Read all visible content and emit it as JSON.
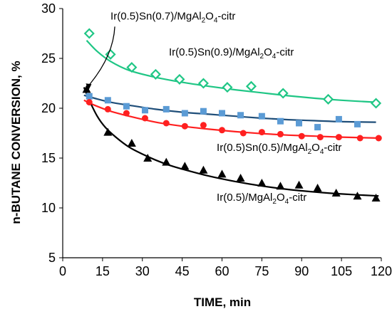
{
  "chart_data": {
    "type": "scatter",
    "title": "",
    "xlabel": "TIME, min",
    "ylabel": "n-BUTANE CONVERSION, %",
    "xlim": [
      0,
      120
    ],
    "ylim": [
      5,
      30
    ],
    "xticks": [
      0,
      15,
      30,
      45,
      60,
      75,
      90,
      105,
      120
    ],
    "yticks": [
      5,
      10,
      15,
      20,
      25,
      30
    ],
    "x_tick_labels": [
      "0",
      "15",
      "30",
      "45",
      "60",
      "75",
      "90",
      "105",
      "120"
    ],
    "y_tick_labels": [
      "5",
      "10",
      "15",
      "20",
      "25",
      "30"
    ],
    "grid": false,
    "legend": "none",
    "series": [
      {
        "label_parts": [
          "Ir(0.5)Sn(0.7)/MgAl",
          "2",
          "O",
          "4",
          "-citr"
        ],
        "color": "#1f4e79",
        "marker_color": "#5b9bd5",
        "marker": "square",
        "x": [
          10,
          17,
          24,
          31,
          39,
          46,
          53,
          60,
          67,
          75,
          82,
          89,
          96,
          104,
          111
        ],
        "y": [
          21.2,
          20.8,
          20.2,
          19.8,
          19.9,
          19.5,
          19.7,
          19.5,
          19.3,
          19.2,
          18.7,
          18.5,
          18.1,
          18.9,
          18.4
        ],
        "fit_x": [
          8,
          12,
          18,
          25,
          35,
          45,
          55,
          65,
          75,
          85,
          95,
          105,
          118
        ],
        "fit_y": [
          21.3,
          21.0,
          20.6,
          20.3,
          19.9,
          19.6,
          19.4,
          19.2,
          19.0,
          18.85,
          18.75,
          18.65,
          18.6
        ]
      },
      {
        "label_parts": [
          "Ir(0.5)Sn(0.9)/MgAl",
          "2",
          "O",
          "4",
          "-citr"
        ],
        "color": "#1fc685",
        "marker_color": "#1fc685",
        "marker": "diamond",
        "x": [
          10,
          18,
          26,
          35,
          44,
          53,
          62,
          71,
          83,
          100,
          118
        ],
        "y": [
          27.5,
          25.4,
          24.1,
          23.4,
          22.9,
          22.5,
          22.1,
          22.2,
          21.5,
          20.9,
          20.5
        ],
        "fit_x": [
          9,
          13,
          18,
          25,
          35,
          45,
          55,
          65,
          75,
          85,
          95,
          105,
          118
        ],
        "fit_y": [
          26.8,
          25.7,
          24.7,
          23.8,
          23.1,
          22.6,
          22.2,
          21.85,
          21.55,
          21.25,
          21.0,
          20.8,
          20.6
        ]
      },
      {
        "label_parts": [
          "Ir(0.5)Sn(0.5)/MgAl",
          "2",
          "O",
          "4",
          "-citr"
        ],
        "color": "#ff2020",
        "marker_color": "#ff2020",
        "marker": "circle",
        "x": [
          10,
          17,
          24,
          31,
          39,
          46,
          53,
          60,
          68,
          75,
          82,
          90,
          97,
          104,
          112,
          119
        ],
        "y": [
          20.6,
          19.9,
          19.5,
          19.0,
          18.5,
          18.2,
          18.3,
          17.8,
          17.5,
          17.6,
          17.4,
          17.2,
          17.1,
          17.1,
          17.0,
          17.0
        ],
        "fit_x": [
          8,
          12,
          18,
          25,
          35,
          45,
          55,
          65,
          75,
          85,
          95,
          105,
          120
        ],
        "fit_y": [
          20.8,
          20.3,
          19.7,
          19.2,
          18.6,
          18.2,
          17.9,
          17.65,
          17.45,
          17.3,
          17.2,
          17.1,
          17.0
        ]
      },
      {
        "label_parts": [
          "Ir(0.5)/MgAl",
          "2",
          "O",
          "4",
          "-citr"
        ],
        "color": "#000000",
        "marker_color": "#000000",
        "marker": "triangle",
        "x": [
          9,
          17,
          26,
          32,
          39,
          46,
          53,
          60,
          67,
          75,
          82,
          89,
          96,
          103,
          111,
          118
        ],
        "y": [
          21.9,
          17.6,
          16.5,
          15.0,
          14.6,
          14.2,
          13.8,
          13.4,
          13.0,
          12.5,
          12.2,
          12.3,
          12.0,
          11.5,
          11.2,
          11.0
        ],
        "fit_x": [
          8,
          10,
          13,
          16,
          20,
          25,
          30,
          35,
          40,
          45,
          55,
          65,
          75,
          85,
          95,
          105,
          119
        ],
        "fit_y": [
          22.1,
          20.8,
          19.2,
          18.1,
          17.1,
          16.1,
          15.4,
          14.8,
          14.3,
          13.9,
          13.2,
          12.65,
          12.2,
          11.85,
          11.6,
          11.4,
          11.2
        ]
      }
    ],
    "annotations": [
      {
        "series": 0,
        "anchor_x": 18,
        "anchor_y": 28.9,
        "arrow_to_x": 9.5,
        "arrow_to_y": 21.7
      },
      {
        "series": 1,
        "anchor_x": 40,
        "anchor_y": 25.3
      },
      {
        "series": 2,
        "anchor_x": 58,
        "anchor_y": 15.7
      },
      {
        "series": 3,
        "anchor_x": 58,
        "anchor_y": 10.7
      }
    ]
  }
}
